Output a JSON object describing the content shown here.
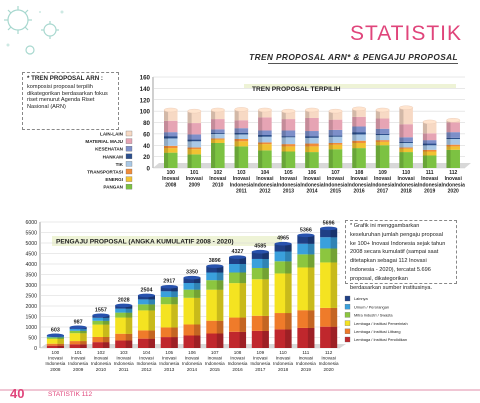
{
  "header": {
    "title": "STATISTIK",
    "subtitle": "TREN PROPOSAL ARN* & PENGAJU PROPOSAL"
  },
  "box1": {
    "heading": "* TREN PROPOSAL ARN :",
    "lines": [
      "komposisi proposal terpilih",
      "dikategorikan berdasarkan fokus",
      "riset menurut Agenda Riset",
      "Nasional (ARN)"
    ]
  },
  "box2": {
    "lines": [
      "* Grafik ini menggambarkan",
      "keseluruhan jumlah pengaju proposal",
      "ke 100+ Inovasi Indonesia sejak tahun",
      "2008 secara kumulatif (sampai saat",
      "ditetapkan sebagai 112 Inovasi",
      "Indonesia - 2020), tercatat 5.696",
      "proposal, dikategorikan",
      "berdasarkan sumber institusinya."
    ]
  },
  "footer": {
    "page_number": "40",
    "running_head": "STATISTIK 112"
  },
  "colors": {
    "accent": "#e0457b",
    "chart1": {
      "categories_order": [
        "PANGAN",
        "ENERGI",
        "TRANSPORTASI",
        "TIK",
        "HANKAM",
        "KESEHATAN",
        "MATERIAL MAJU",
        "LAIN-LAIN"
      ],
      "fills": [
        "#7cc242",
        "#f1c232",
        "#f08c3a",
        "#a9c8e6",
        "#2c4f8c",
        "#7d8fc9",
        "#e6a4b4",
        "#f7d9c4"
      ]
    },
    "chart2": {
      "fills": [
        "#c0272d",
        "#ef7b2a",
        "#f4e321",
        "#8cc63f",
        "#3aa0dc",
        "#1f3f85"
      ]
    }
  },
  "chart_data": [
    {
      "type": "bar",
      "stacked": true,
      "title": "TREN PROPOSAL TERPILIH",
      "ylim": [
        0,
        160
      ],
      "yticks": [
        0,
        20,
        40,
        60,
        80,
        100,
        120,
        140,
        160
      ],
      "categories": [
        [
          "100",
          "Inovasi",
          "2008"
        ],
        [
          "101",
          "Inovasi",
          "2009"
        ],
        [
          "102",
          "Inovasi",
          "2010"
        ],
        [
          "103",
          "Inovasi",
          "Indonesia",
          "2011"
        ],
        [
          "104",
          "Inovasi",
          "Indonesia",
          "2012"
        ],
        [
          "105",
          "Inovasi",
          "Indonesia",
          "2013"
        ],
        [
          "106",
          "Inovasi",
          "Indonesia",
          "2014"
        ],
        [
          "107",
          "Inovasi",
          "Indonesia",
          "2015"
        ],
        [
          "108",
          "Inovasi",
          "Indonesia",
          "2016"
        ],
        [
          "109",
          "Inovasi",
          "Indonesia",
          "2017"
        ],
        [
          "110",
          "Inovasi",
          "Indonesia",
          "2018"
        ],
        [
          "111",
          "Inovasi",
          "Indonesia",
          "2019"
        ],
        [
          "112",
          "Inovasi",
          "Indonesia",
          "2020"
        ]
      ],
      "legend": [
        "LAIN-LAIN",
        "MATERIAL MAJU",
        "KESEHATAN",
        "HANKAM",
        "TIK",
        "TRANSPORTASI",
        "ENERGI",
        "PANGAN"
      ],
      "series": [
        {
          "name": "PANGAN",
          "values": [
            27,
            24,
            44,
            38,
            31,
            29,
            28,
            33,
            35,
            40,
            28,
            22,
            32
          ]
        },
        {
          "name": "ENERGI",
          "values": [
            8,
            9,
            6,
            9,
            11,
            9,
            10,
            8,
            9,
            6,
            6,
            7,
            6
          ]
        },
        {
          "name": "TRANSPORTASI",
          "values": [
            4,
            3,
            2,
            4,
            3,
            4,
            5,
            3,
            4,
            3,
            2,
            3,
            3
          ]
        },
        {
          "name": "TIK",
          "values": [
            13,
            11,
            8,
            8,
            10,
            12,
            10,
            11,
            11,
            9,
            8,
            8,
            10
          ]
        },
        {
          "name": "HANKAM",
          "values": [
            4,
            3,
            2,
            3,
            3,
            2,
            3,
            2,
            4,
            2,
            2,
            3,
            2
          ]
        },
        {
          "name": "KESEHATAN",
          "values": [
            7,
            9,
            6,
            8,
            8,
            10,
            9,
            10,
            10,
            9,
            8,
            6,
            10
          ]
        },
        {
          "name": "MATERIAL MAJU",
          "values": [
            20,
            20,
            18,
            14,
            23,
            20,
            23,
            18,
            17,
            18,
            23,
            12,
            17
          ]
        },
        {
          "name": "LAIN-LAIN",
          "values": [
            19,
            21,
            16,
            19,
            13,
            14,
            14,
            15,
            14,
            15,
            29,
            20,
            4
          ]
        }
      ]
    },
    {
      "type": "bar",
      "stacked": true,
      "title": "PENGAJU PROPOSAL (ANGKA KUMULATIF 2008 - 2020)",
      "ylim": [
        0,
        6000
      ],
      "yticks": [
        0,
        500,
        1000,
        1500,
        2000,
        2500,
        3000,
        3500,
        4000,
        4500,
        5000,
        5500,
        6000
      ],
      "categories": [
        [
          "100",
          "Inovasi",
          "Indonesia",
          "2008"
        ],
        [
          "101",
          "Inovasi",
          "Indonesia",
          "2009"
        ],
        [
          "102",
          "Inovasi",
          "Indonesia",
          "2010"
        ],
        [
          "103",
          "Inovasi",
          "Indonesia",
          "2011"
        ],
        [
          "104",
          "Inovasi",
          "Indonesia",
          "2012"
        ],
        [
          "105",
          "Inovasi",
          "Indonesia",
          "2013"
        ],
        [
          "106",
          "Inovasi",
          "Indonesia",
          "2014"
        ],
        [
          "107",
          "Inovasi",
          "Indonesia",
          "2015"
        ],
        [
          "108",
          "Inovasi",
          "Indonesia",
          "2016"
        ],
        [
          "109",
          "Inovasi",
          "Indonesia",
          "2017"
        ],
        [
          "110",
          "Inovasi",
          "Indonesia",
          "2018"
        ],
        [
          "111",
          "Inovasi",
          "Indonesia",
          "2019"
        ],
        [
          "112",
          "Inovasi",
          "Indonesia",
          "2020"
        ]
      ],
      "totals": [
        603,
        987,
        1557,
        2028,
        2504,
        2917,
        3350,
        3896,
        4327,
        4585,
        4965,
        5366,
        5696
      ],
      "total_labels": [
        "603",
        "987",
        "1557",
        "2028",
        "2504",
        "2917",
        "3350",
        "3896",
        "4327",
        "4585",
        "4965",
        "5366",
        "5696"
      ],
      "legend": [
        "Lainnya",
        "Umum / Perorangan",
        "Mitra Industri / Swasta",
        "Lembaga / Institusi Pemerintah",
        "Lembaga / Institusi Litbang",
        "Lembaga / Institusi Pendidikan"
      ],
      "series": [
        {
          "name": "Lembaga / Institusi Pendidikan",
          "values": [
            110,
            175,
            280,
            360,
            445,
            520,
            595,
            690,
            770,
            815,
            885,
            955,
            1015
          ]
        },
        {
          "name": "Lembaga / Institusi Litbang",
          "values": [
            95,
            155,
            245,
            320,
            395,
            460,
            525,
            610,
            680,
            720,
            780,
            845,
            895
          ]
        },
        {
          "name": "Lembaga / Institusi Pemerintah",
          "values": [
            230,
            375,
            590,
            770,
            950,
            1105,
            1270,
            1475,
            1640,
            1740,
            1885,
            2035,
            2165
          ]
        },
        {
          "name": "Mitra Industri / Swasta",
          "values": [
            70,
            115,
            180,
            235,
            290,
            340,
            390,
            455,
            505,
            535,
            580,
            625,
            665
          ]
        },
        {
          "name": "Umum / Perorangan",
          "values": [
            55,
            90,
            145,
            190,
            235,
            275,
            315,
            365,
            405,
            430,
            465,
            505,
            535
          ]
        },
        {
          "name": "Lainnya",
          "values": [
            43,
            77,
            117,
            153,
            189,
            217,
            255,
            301,
            327,
            345,
            370,
            401,
            421
          ]
        }
      ]
    }
  ]
}
